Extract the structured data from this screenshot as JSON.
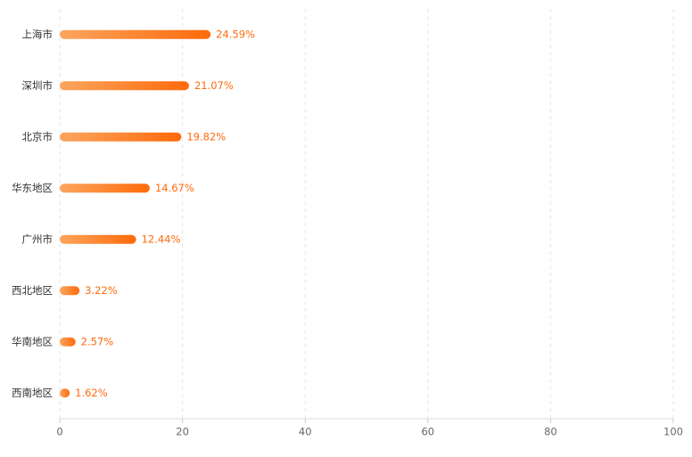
{
  "chart_data": {
    "type": "bar",
    "orientation": "horizontal",
    "categories": [
      "上海市",
      "深圳市",
      "北京市",
      "华东地区",
      "广州市",
      "西北地区",
      "华南地区",
      "西南地区"
    ],
    "values": [
      24.59,
      21.07,
      19.82,
      14.67,
      12.44,
      3.22,
      2.57,
      1.62
    ],
    "value_labels": [
      "24.59%",
      "21.07%",
      "19.82%",
      "14.67%",
      "12.44%",
      "3.22%",
      "2.57%",
      "1.62%"
    ],
    "color": "#ff6a0a",
    "xlim": [
      0,
      100
    ],
    "xticks": [
      0,
      20,
      40,
      60,
      80,
      100
    ],
    "grid": true
  }
}
